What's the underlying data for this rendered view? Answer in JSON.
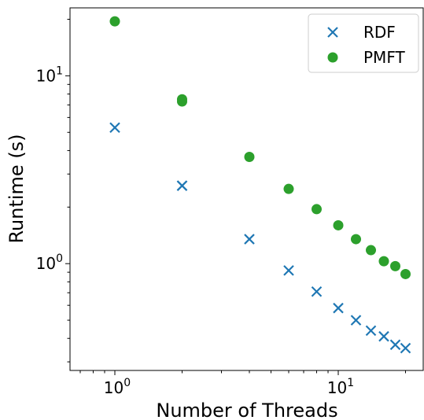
{
  "chart_data": {
    "type": "scatter",
    "title": "",
    "xlabel": "Number of Threads",
    "ylabel": "Runtime (s)",
    "xscale": "log",
    "yscale": "log",
    "xlim": [
      0.63,
      24
    ],
    "ylim": [
      0.27,
      23
    ],
    "x_tick_labels": [
      {
        "value": 1,
        "base": "10",
        "exp": "0"
      },
      {
        "value": 10,
        "base": "10",
        "exp": "1"
      }
    ],
    "y_tick_labels": [
      {
        "value": 1,
        "base": "10",
        "exp": "0"
      },
      {
        "value": 10,
        "base": "10",
        "exp": "1"
      }
    ],
    "legend_position": "top-right",
    "grid": false,
    "series": [
      {
        "name": "RDF",
        "marker": "x",
        "color": "#1f77b4",
        "x": [
          1,
          2,
          2,
          4,
          6,
          8,
          10,
          12,
          14,
          16,
          18,
          20
        ],
        "y": [
          5.3,
          2.6,
          2.6,
          1.35,
          0.92,
          0.71,
          0.58,
          0.5,
          0.44,
          0.41,
          0.37,
          0.355
        ]
      },
      {
        "name": "PMFT",
        "marker": "o",
        "color": "#2ca02c",
        "x": [
          1,
          2,
          2,
          4,
          6,
          8,
          10,
          12,
          14,
          16,
          18,
          20
        ],
        "y": [
          19.5,
          7.5,
          7.3,
          3.7,
          2.5,
          1.95,
          1.6,
          1.35,
          1.18,
          1.03,
          0.97,
          0.88
        ]
      }
    ]
  }
}
